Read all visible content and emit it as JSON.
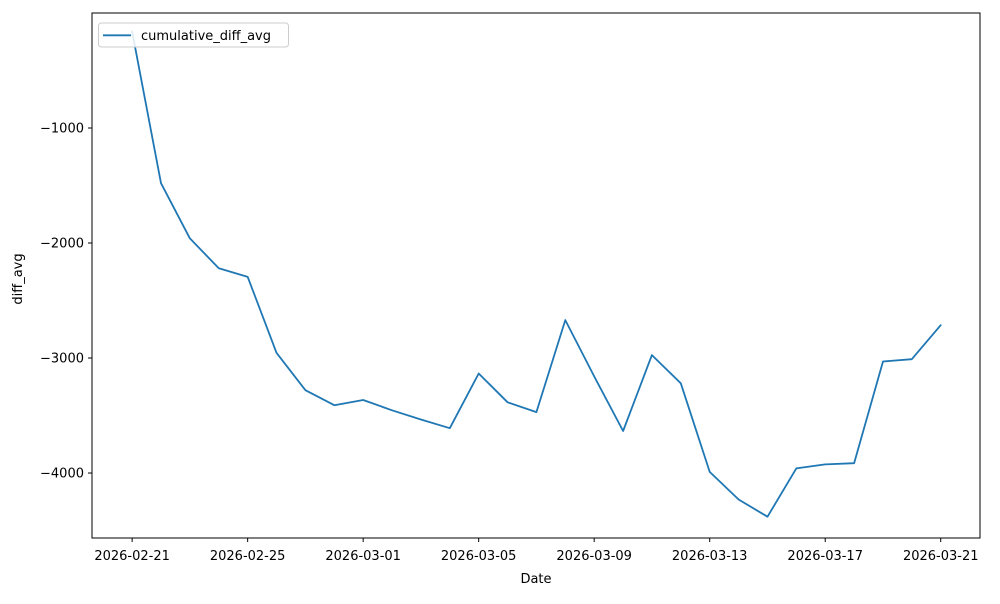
{
  "chart_data": {
    "type": "line",
    "title": "",
    "xlabel": "Date",
    "ylabel": "diff_avg",
    "grid": false,
    "legend": {
      "position": "upper-left",
      "entries": [
        "cumulative_diff_avg"
      ]
    },
    "x_ticks": [
      "2026-02-21",
      "2026-02-25",
      "2026-03-01",
      "2026-03-05",
      "2026-03-09",
      "2026-03-13",
      "2026-03-17",
      "2026-03-21"
    ],
    "y_ticks": [
      -1000,
      -2000,
      -3000,
      -4000
    ],
    "xlim_day_offsets": [
      -1.39,
      29.36
    ],
    "ylim": [
      -4565,
      0
    ],
    "series": [
      {
        "name": "cumulative_diff_avg",
        "color": "#1f77b4",
        "x": [
          "2026-02-21",
          "2026-02-22",
          "2026-02-23",
          "2026-02-24",
          "2026-02-25",
          "2026-02-26",
          "2026-02-27",
          "2026-02-28",
          "2026-03-01",
          "2026-03-02",
          "2026-03-03",
          "2026-03-04",
          "2026-03-05",
          "2026-03-06",
          "2026-03-07",
          "2026-03-08",
          "2026-03-09",
          "2026-03-10",
          "2026-03-11",
          "2026-03-12",
          "2026-03-13",
          "2026-03-14",
          "2026-03-15",
          "2026-03-16",
          "2026-03-17",
          "2026-03-18",
          "2026-03-19",
          "2026-03-20",
          "2026-03-21"
        ],
        "y": [
          -160,
          -1480,
          -1960,
          -2220,
          -2295,
          -2955,
          -3280,
          -3410,
          -3365,
          -3455,
          -3535,
          -3610,
          -3135,
          -3385,
          -3470,
          -2670,
          -3160,
          -3635,
          -2975,
          -3220,
          -3990,
          -4230,
          -4380,
          -3960,
          -3925,
          -3915,
          -3030,
          -3010,
          -2715
        ]
      }
    ]
  }
}
